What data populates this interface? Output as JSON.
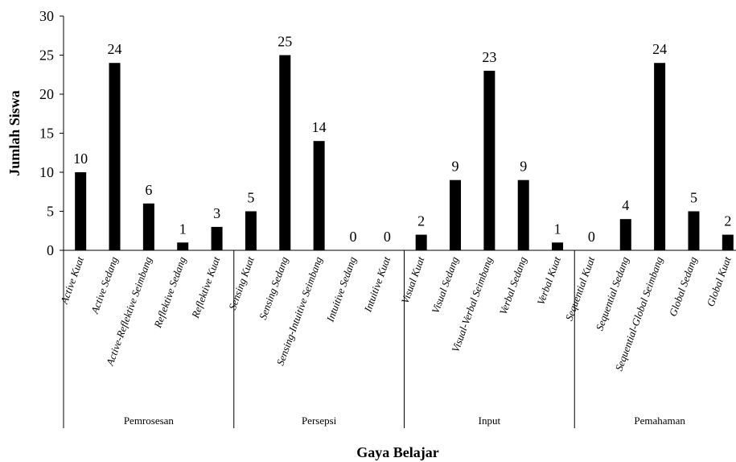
{
  "chart_data": {
    "type": "bar",
    "xlabel": "Gaya Belajar",
    "ylabel": "Jumlah Siswa",
    "ylim": [
      0,
      30
    ],
    "yticks": [
      0,
      5,
      10,
      15,
      20,
      25,
      30
    ],
    "grid": false,
    "legend": "none",
    "bar_color": "#000000",
    "groups": [
      {
        "name": "Pemrosesan",
        "categories": [
          "Active Kuat",
          "Active Sedang",
          "Active-Reflektive Seimbang",
          "Reflektive Sedang",
          "Reflektive Kuat"
        ]
      },
      {
        "name": "Persepsi",
        "categories": [
          "Sensing Kuat",
          "Sensing Sedang",
          "Sensing-Intuitive Seimbang",
          "Intuitive Sedang",
          "Intuitive Kuat"
        ]
      },
      {
        "name": "Input",
        "categories": [
          "Visual Kuat",
          "Visual Sedang",
          "Visual-Verbal Seimbang",
          "Verbal Sedang",
          "Verbal Kuat"
        ]
      },
      {
        "name": "Pemahaman",
        "categories": [
          "Sequential Kuat",
          "Sequential Sedang",
          "Sequential-Global Seimbang",
          "Global Sedang",
          "Global Kuat"
        ]
      }
    ],
    "categories": [
      "Active Kuat",
      "Active Sedang",
      "Active-Reflektive Seimbang",
      "Reflektive Sedang",
      "Reflektive Kuat",
      "Sensing Kuat",
      "Sensing Sedang",
      "Sensing-Intuitive Seimbang",
      "Intuitive Sedang",
      "Intuitive Kuat",
      "Visual Kuat",
      "Visual Sedang",
      "Visual-Verbal Seimbang",
      "Verbal Sedang",
      "Verbal Kuat",
      "Sequential Kuat",
      "Sequential Sedang",
      "Sequential-Global Seimbang",
      "Global Sedang",
      "Global Kuat"
    ],
    "values": [
      10,
      24,
      6,
      1,
      3,
      5,
      25,
      14,
      0,
      0,
      2,
      9,
      23,
      9,
      1,
      0,
      4,
      24,
      5,
      2
    ]
  }
}
